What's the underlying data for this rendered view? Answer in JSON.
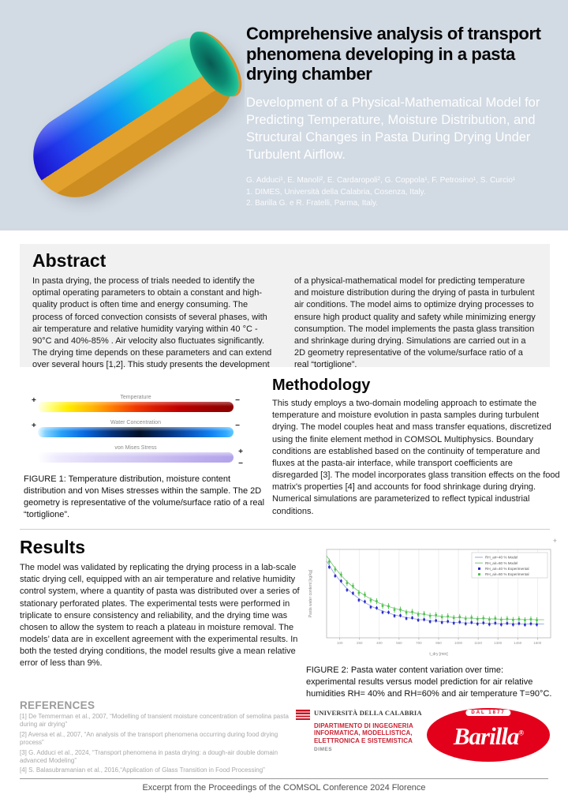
{
  "poster": {
    "header": {
      "title": "Comprehensive analysis of transport phenomena developing in a pasta drying chamber",
      "subtitle": "Development of a Physical-Mathematical Model for Predicting Temperature, Moisture Distribution, and Structural Changes in Pasta During Drying Under Turbulent Airflow.",
      "authors": "G. Adduci¹, E. Manoli², E. Cardaropoli², G. Coppola¹, F. Petrosino¹, S. Curcio¹",
      "affiliation1": "1. DIMES, Università della Calabria, Cosenza, Italy.",
      "affiliation2": "2. Barilla G. e R. Fratelli, Parma, Italy."
    },
    "abstract": {
      "title": "Abstract",
      "col1": "In pasta drying, the process of trials needed to identify the optimal operating parameters to obtain a constant and high-quality product is often time and energy consuming. The process of forced convection consists of several phases, with air temperature and relative humidity varying within 40 °C - 90°C and 40%-85% . Air velocity also fluctuates significantly. The drying time depends on these parameters and can extend over several hours [1,2]. This study presents the development",
      "col2": "of a physical-mathematical model for predicting temperature and moisture distribution during the drying of pasta in turbulent air conditions. The model aims to optimize drying processes to ensure high product quality and safety while minimizing energy consumption. The model implements the pasta glass transition and shrinkage during drying. Simulations are carried out in a 2D geometry representative of the volume/surface ratio of a real “tortiglione”."
    },
    "figure1": {
      "bars": [
        {
          "label": "Temperature"
        },
        {
          "label": "Water Concentration"
        },
        {
          "label": "von Mises Stress"
        }
      ],
      "plus": "+",
      "minus": "−",
      "caption": "FIGURE 1: Temperature distribution, moisture content distribution and von Mises stresses within the sample. The 2D geometry is representative of the volume/surface ratio of a real “tortiglione”."
    },
    "methodology": {
      "title": "Methodology",
      "body": "This study employs a two-domain modeling approach to estimate the temperature and moisture evolution in pasta samples during turbulent drying. The model couples heat and mass transfer equations, discretized using the finite element method in COMSOL Multiphysics. Boundary conditions are established based on the continuity of temperature and fluxes at the pasta-air interface, while transport coefficients are disregarded [3]. The model incorporates glass transition effects on the food matrix's properties [4] and accounts for food shrinkage during drying. Numerical simulations are parameterized to reflect typical industrial conditions."
    },
    "results": {
      "title": "Results",
      "body": "The model was validated by replicating the drying process in a lab-scale static drying cell, equipped with an air temperature and relative humidity control system, where a quantity of pasta was distributed over a series of stationary perforated plates. The experimental tests were performed in triplicate to ensure consistency and reliability, and the drying time was chosen to allow the system to reach a plateau in moisture removal. The models’ data are in excellent agreement with the experimental results. In both the tested drying conditions, the model results give a mean relative error of less than 9%."
    },
    "figure2": {
      "caption": "FIGURE 2:  Pasta water content variation over time: experimental results versus model prediction for air relative humidities RH= 40% and RH=60% and air temperature T=90°C.",
      "zoom_glyph": "+"
    },
    "references": {
      "title": "REFERENCES",
      "items": [
        "[1] De Temmerman et al., 2007,  “Modelling of transient moisture concentration of semolina pasta during air drying”",
        "[2] Aversa et al., 2007, “An analysis of the transport phenomena occurring during food drying process”",
        "[3] G. Adduci et al., 2024, “Transport phenomena in pasta drying: a dough-air double domain advanced Modeling”",
        "[4] S. Balasubramanian et al., 2016,“Application of Glass Transition in Food Processing”"
      ]
    },
    "logos": {
      "unical_name": "UNIVERSITÀ DELLA CALABRIA",
      "unical_dept": "DIPARTIMENTO DI INGEGNERIA INFORMATICA, MODELLISTICA, ELETTRONICA E SISTEMISTICA",
      "unical_dimes": "DIMES",
      "barilla_name": "Barilla",
      "barilla_dal": "DAL 1877",
      "barilla_red": "#e3001b"
    },
    "footer": "Excerpt from the Proceedings of the COMSOL Conference 2024 Florence"
  },
  "chart_data": {
    "type": "scatter",
    "title": "",
    "xlabel": "t_dry [min]",
    "ylabel": "Pasta water content [kg/kg]",
    "xlim": [
      0,
      1700
    ],
    "ylim": [
      0.05,
      0.47
    ],
    "x_ticks": [
      100,
      250,
      400,
      550,
      700,
      850,
      1000,
      1150,
      1300,
      1450,
      1600
    ],
    "grid": "vertical",
    "legend_position": "top-right",
    "series": [
      {
        "name": "RH_air=40 % Model",
        "type": "line",
        "color": "#98a4e6",
        "x": [
          0,
          50,
          100,
          150,
          200,
          250,
          300,
          350,
          400,
          450,
          500,
          550,
          600,
          650,
          700,
          750,
          800,
          850,
          900,
          950,
          1000,
          1050,
          1100,
          1150,
          1200,
          1250,
          1300,
          1350,
          1400,
          1450,
          1500,
          1550,
          1600,
          1650
        ],
        "y": [
          0.415,
          0.364,
          0.322,
          0.287,
          0.258,
          0.234,
          0.214,
          0.197,
          0.183,
          0.172,
          0.162,
          0.154,
          0.147,
          0.142,
          0.137,
          0.134,
          0.13,
          0.128,
          0.126,
          0.124,
          0.122,
          0.121,
          0.12,
          0.119,
          0.119,
          0.118,
          0.117,
          0.117,
          0.117,
          0.116,
          0.116,
          0.116,
          0.116,
          0.116
        ]
      },
      {
        "name": "RH_air=60 % Model",
        "type": "line",
        "color": "#7cc87c",
        "x": [
          0,
          50,
          100,
          150,
          200,
          250,
          300,
          350,
          400,
          450,
          500,
          550,
          600,
          650,
          700,
          750,
          800,
          850,
          900,
          950,
          1000,
          1050,
          1100,
          1150,
          1200,
          1250,
          1300,
          1350,
          1400,
          1450,
          1500,
          1550,
          1600,
          1650
        ],
        "y": [
          0.44,
          0.393,
          0.354,
          0.32,
          0.292,
          0.268,
          0.247,
          0.23,
          0.215,
          0.203,
          0.193,
          0.184,
          0.176,
          0.17,
          0.165,
          0.16,
          0.156,
          0.153,
          0.15,
          0.148,
          0.146,
          0.144,
          0.143,
          0.142,
          0.141,
          0.14,
          0.139,
          0.138,
          0.138,
          0.137,
          0.137,
          0.137,
          0.136,
          0.136
        ]
      },
      {
        "name": "RH_air=40 % Experimental",
        "type": "points",
        "color": "#2a2ac8",
        "error": 0.009,
        "x": [
          20,
          65,
          110,
          155,
          200,
          245,
          290,
          335,
          380,
          425,
          470,
          515,
          560,
          605,
          650,
          695,
          740,
          785,
          830,
          875,
          920,
          965,
          1010,
          1055,
          1100,
          1145,
          1190,
          1235,
          1280,
          1325,
          1370,
          1415,
          1460,
          1505,
          1550,
          1595
        ],
        "y": [
          0.386,
          0.344,
          0.32,
          0.277,
          0.262,
          0.229,
          0.222,
          0.196,
          0.192,
          0.171,
          0.171,
          0.154,
          0.156,
          0.142,
          0.145,
          0.134,
          0.137,
          0.127,
          0.132,
          0.123,
          0.128,
          0.12,
          0.125,
          0.117,
          0.123,
          0.116,
          0.121,
          0.114,
          0.12,
          0.113,
          0.119,
          0.113,
          0.118,
          0.112,
          0.117,
          0.113
        ]
      },
      {
        "name": "RH_air=60 % Experimental",
        "type": "points",
        "color": "#50c050",
        "error": 0.014,
        "x": [
          20,
          65,
          110,
          155,
          200,
          245,
          290,
          335,
          380,
          425,
          470,
          515,
          560,
          605,
          650,
          695,
          740,
          785,
          830,
          875,
          920,
          965,
          1010,
          1055,
          1100,
          1145,
          1190,
          1235,
          1280,
          1325,
          1370,
          1415,
          1460,
          1505,
          1550,
          1595
        ],
        "y": [
          0.412,
          0.375,
          0.35,
          0.31,
          0.296,
          0.263,
          0.255,
          0.228,
          0.224,
          0.202,
          0.2,
          0.183,
          0.184,
          0.17,
          0.173,
          0.161,
          0.164,
          0.154,
          0.158,
          0.149,
          0.152,
          0.145,
          0.149,
          0.141,
          0.146,
          0.139,
          0.143,
          0.137,
          0.142,
          0.136,
          0.14,
          0.135,
          0.139,
          0.134,
          0.138,
          0.134
        ]
      }
    ]
  }
}
